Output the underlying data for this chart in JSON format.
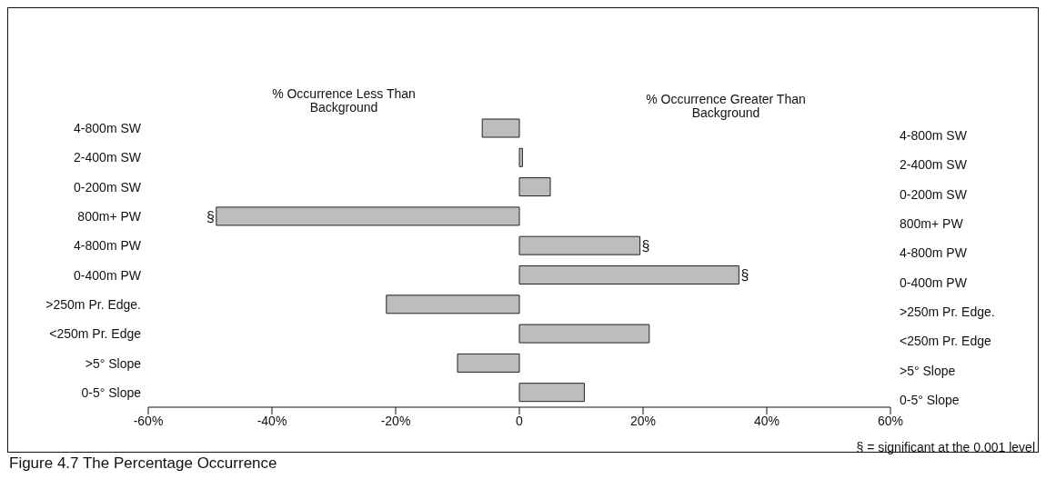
{
  "chart_data": {
    "type": "bar",
    "orientation": "horizontal",
    "categories": [
      "4-800m SW",
      "2-400m SW",
      "0-200m SW",
      "800m+ PW",
      "4-800m PW",
      "0-400m PW",
      ">250m Pr. Edge.",
      "<250m Pr. Edge",
      ">5° Slope",
      "0-5° Slope"
    ],
    "values": [
      -6,
      0.5,
      5,
      -49,
      19.5,
      35.5,
      -21.5,
      21,
      -10,
      10.5
    ],
    "color": "#bdbdbd",
    "xlim": [
      -60,
      60
    ],
    "xticks": [
      {
        "value": -60,
        "label": "-60%"
      },
      {
        "value": -40,
        "label": "-40%"
      },
      {
        "value": -20,
        "label": "-20%"
      },
      0,
      {
        "value": 20,
        "label": "20%"
      },
      {
        "value": 40,
        "label": "40%"
      },
      {
        "value": 60,
        "label": "60%"
      }
    ],
    "grid": false,
    "legend": false,
    "annotations": [
      "% Occurrence Less Than Background",
      "% Occurrence Greater Than Background",
      "§ = significant at the 0.001 level",
      "Figure 4.7 The Percentage Occurrence",
      {
        "text": "§",
        "x": -49,
        "y": "800m+ PW"
      },
      {
        "text": "§",
        "x": 19.5,
        "y": "4-800m PW"
      },
      {
        "text": "§",
        "x": 35.5,
        "y": "0-400m PW"
      }
    ]
  }
}
